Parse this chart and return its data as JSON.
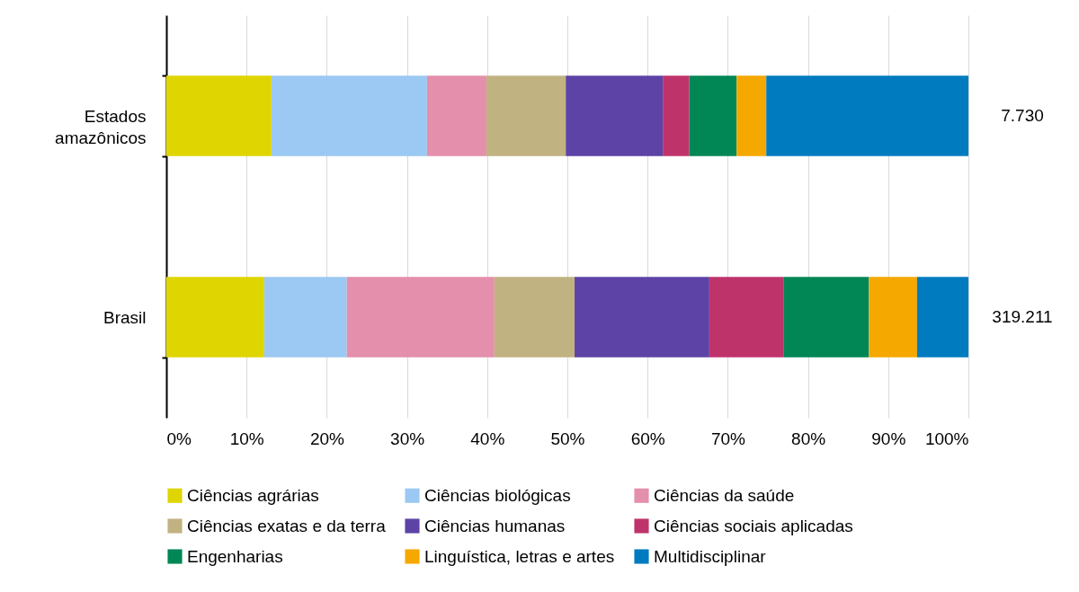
{
  "chart_data": {
    "type": "bar",
    "orientation": "horizontal",
    "stacked": true,
    "categories": [
      "Estados amazônicos",
      "Brasil"
    ],
    "series": [
      {
        "name": "Ciências agrárias",
        "color": "#dfd500",
        "values": [
          13.1,
          12.2
        ]
      },
      {
        "name": "Ciências biológicas",
        "color": "#9bc9f3",
        "values": [
          19.4,
          10.3
        ]
      },
      {
        "name": "Ciências da saúde",
        "color": "#e48fab",
        "values": [
          7.4,
          18.4
        ]
      },
      {
        "name": "Ciências exatas e da terra",
        "color": "#c1b282",
        "values": [
          9.9,
          10.0
        ]
      },
      {
        "name": "Ciências humanas",
        "color": "#5d43a5",
        "values": [
          12.1,
          16.8
        ]
      },
      {
        "name": "Ciências sociais aplicadas",
        "color": "#bf336b",
        "values": [
          3.3,
          9.3
        ]
      },
      {
        "name": "Engenharias",
        "color": "#008755",
        "values": [
          5.9,
          10.6
        ]
      },
      {
        "name": "Linguística, letras e artes",
        "color": "#f5a800",
        "values": [
          3.7,
          6.0
        ]
      },
      {
        "name": "Multidisciplinar",
        "color": "#007bc0",
        "values": [
          25.2,
          6.4
        ]
      }
    ],
    "annotations": [
      {
        "text": "7.730",
        "x": 100,
        "y": "Estados amazônicos"
      },
      {
        "text": "319.211",
        "x": 100,
        "y": "Brasil"
      }
    ],
    "xlim": [
      0,
      100
    ],
    "xticks": [
      {
        "value": 0,
        "label": "0%"
      },
      {
        "value": 10,
        "label": "10%"
      },
      {
        "value": 20,
        "label": "20%"
      },
      {
        "value": 30,
        "label": "30%"
      },
      {
        "value": 40,
        "label": "40%"
      },
      {
        "value": 50,
        "label": "50%"
      },
      {
        "value": 60,
        "label": "60%"
      },
      {
        "value": 70,
        "label": "70%"
      },
      {
        "value": 80,
        "label": "80%"
      },
      {
        "value": 90,
        "label": "90%"
      },
      {
        "value": 100,
        "label": "100%"
      }
    ],
    "grid": "x",
    "legend": "bottom"
  }
}
